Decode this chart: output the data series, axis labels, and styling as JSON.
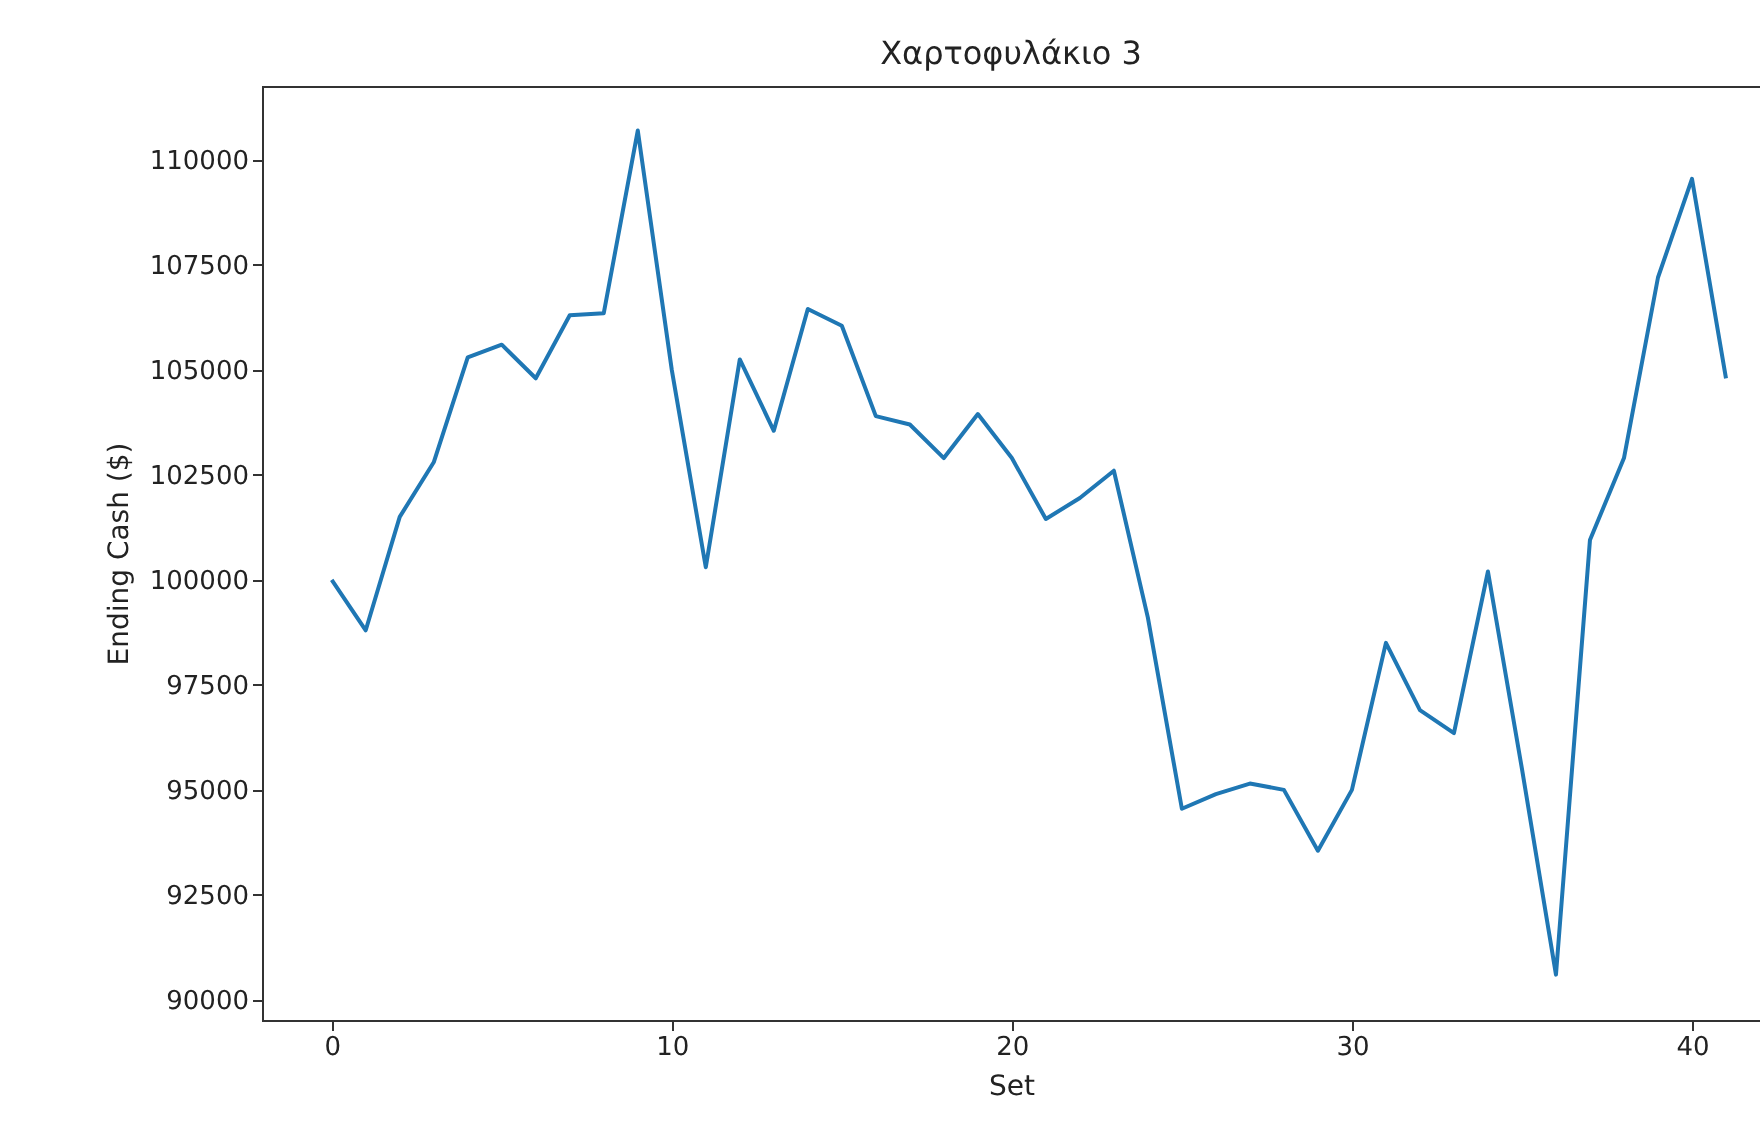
{
  "chart_data": {
    "type": "line",
    "title": "Χαρτοφυλάκιο 3",
    "xlabel": "Set",
    "ylabel": "Ending Cash ($)",
    "x": [
      0,
      1,
      2,
      3,
      4,
      5,
      6,
      7,
      8,
      9,
      10,
      11,
      12,
      13,
      14,
      15,
      16,
      17,
      18,
      19,
      20,
      21,
      22,
      23,
      24,
      25,
      26,
      27,
      28,
      29,
      30,
      31,
      32,
      33,
      34,
      35,
      36,
      37,
      38,
      39,
      40,
      41
    ],
    "series": [
      {
        "color": "#1f77b4",
        "values": [
          100000,
          98800,
          101500,
          102800,
          105300,
          105600,
          104800,
          106300,
          106350,
          110700,
          105000,
          100300,
          105250,
          103550,
          106450,
          106050,
          103900,
          103700,
          102900,
          103950,
          102900,
          101450,
          101950,
          102600,
          99100,
          94550,
          94900,
          95150,
          95000,
          93550,
          95000,
          98500,
          96900,
          96350,
          100200,
          95500,
          90600,
          100950,
          102900,
          107200,
          109550,
          104800
        ]
      }
    ],
    "xlim": [
      -2.05,
      42
    ],
    "xticks": [
      0,
      10,
      20,
      30,
      40
    ],
    "ylim": [
      89520,
      111760
    ],
    "yticks": [
      90000,
      92500,
      95000,
      97500,
      100000,
      102500,
      105000,
      107500,
      110000
    ],
    "grid": false,
    "marker": "none",
    "line_style": "solid"
  }
}
